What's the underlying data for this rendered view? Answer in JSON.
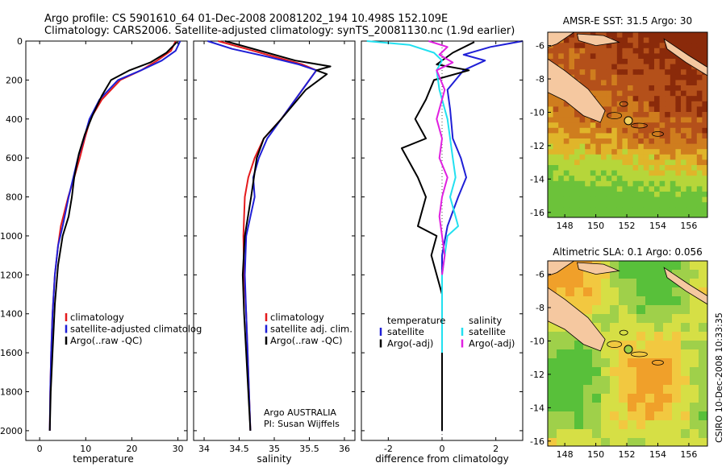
{
  "title_line1": "Argo profile: CS 5901610_64 01-Dec-2008 20081202_194 10.498S 152.109E",
  "title_line2": "Climatology: CARS2006. Satellite-adjusted climatology: synTS_20081130.nc (1.9d earlier)",
  "side_stamp": "CSIRO 10-Dec-2008 10:33:35",
  "colors": {
    "red": "#e41a1c",
    "blue": "#1f1fd6",
    "black": "#000000",
    "cyan": "#22e0f0",
    "magenta": "#e020e0"
  },
  "chart_data": [
    {
      "type": "line",
      "xlabel": "temperature",
      "ylabel": "",
      "xlim": [
        -3,
        32
      ],
      "ylim": [
        2050,
        0
      ],
      "xticks": [
        0,
        10,
        20,
        30
      ],
      "yticks": [
        0,
        200,
        400,
        600,
        800,
        1000,
        1200,
        1400,
        1600,
        1800,
        2000
      ],
      "legend_position": "lower-right",
      "legend": [
        "climatology",
        "satellite-adjusted climatolog",
        "Argo(..raw -QC)"
      ],
      "series": [
        {
          "name": "climatology",
          "color": "#e41a1c",
          "x": [
            29.5,
            28.5,
            25.5,
            22,
            17.5,
            13.5,
            11,
            9.8,
            8.7,
            7.5,
            6.2,
            4.6,
            4.0,
            3.3,
            2.8,
            2.5,
            2.3,
            2.2
          ],
          "y": [
            0,
            50,
            100,
            150,
            200,
            300,
            400,
            500,
            600,
            700,
            800,
            950,
            1050,
            1200,
            1400,
            1600,
            1800,
            2000
          ]
        },
        {
          "name": "satellite-adjusted climatolog",
          "color": "#1f1fd6",
          "x": [
            30.5,
            29.5,
            26.5,
            22,
            17,
            13,
            10.8,
            9.6,
            8.3,
            7.3,
            6.3,
            5.0,
            4.0,
            3.3,
            2.8,
            2.5,
            2.3,
            2.2
          ],
          "y": [
            0,
            50,
            100,
            150,
            200,
            300,
            400,
            500,
            600,
            700,
            800,
            950,
            1050,
            1200,
            1400,
            1600,
            1800,
            2000
          ]
        },
        {
          "name": "Argo(..raw -QC)",
          "color": "#000000",
          "x": [
            29.8,
            27.5,
            24,
            19.5,
            15.5,
            13.5,
            11.5,
            9.8,
            8.5,
            7.5,
            7.0,
            6.3,
            5.0,
            4.0,
            3.3,
            2.8,
            2.4,
            2.2
          ],
          "y": [
            5,
            60,
            110,
            150,
            200,
            280,
            380,
            480,
            580,
            700,
            800,
            900,
            1000,
            1150,
            1350,
            1600,
            1800,
            2000
          ]
        }
      ]
    },
    {
      "type": "line",
      "xlabel": "salinity",
      "ylabel": "",
      "xlim": [
        33.85,
        36.15
      ],
      "ylim": [
        2050,
        0
      ],
      "xticks": [
        34,
        34.5,
        35,
        35.5,
        36
      ],
      "legend_position": "lower-right",
      "legend": [
        "climatology",
        "satellite adj. clim.",
        "Argo(..raw -QC)"
      ],
      "annotation": [
        "Argo AUSTRALIA",
        "PI: Susan Wijffels"
      ],
      "series": [
        {
          "name": "climatology",
          "color": "#e41a1c",
          "x": [
            34.2,
            34.6,
            35.0,
            35.4,
            35.6,
            35.4,
            35.1,
            34.85,
            34.72,
            34.63,
            34.58,
            34.56,
            34.57,
            34.6,
            34.62,
            34.64,
            34.66
          ],
          "y": [
            0,
            40,
            80,
            120,
            150,
            250,
            400,
            500,
            600,
            700,
            800,
            1000,
            1200,
            1400,
            1600,
            1800,
            2000
          ]
        },
        {
          "name": "satellite adj. clim.",
          "color": "#1f1fd6",
          "x": [
            34.05,
            34.4,
            34.9,
            35.35,
            35.6,
            35.4,
            35.1,
            34.9,
            34.78,
            34.7,
            34.72,
            34.6,
            34.58,
            34.6,
            34.62,
            34.64,
            34.66
          ],
          "y": [
            0,
            40,
            80,
            120,
            150,
            250,
            400,
            500,
            600,
            700,
            800,
            1000,
            1200,
            1400,
            1600,
            1800,
            2000
          ]
        },
        {
          "name": "Argo(..raw -QC)",
          "color": "#000000",
          "x": [
            34.3,
            34.9,
            35.3,
            35.8,
            35.6,
            35.75,
            35.45,
            35.1,
            34.85,
            34.75,
            34.67,
            34.58,
            34.55,
            34.57,
            34.6,
            34.63,
            34.66
          ],
          "y": [
            0,
            60,
            100,
            130,
            150,
            170,
            250,
            400,
            500,
            600,
            800,
            1000,
            1200,
            1400,
            1600,
            1800,
            2000
          ]
        }
      ]
    },
    {
      "type": "line",
      "xlabel": "difference from climatology",
      "ylabel": "",
      "xlim": [
        -3,
        3
      ],
      "ylim": [
        2050,
        0
      ],
      "xticks": [
        -2,
        0,
        2
      ],
      "legend_position": "lower-right",
      "legend": [
        "temperature",
        "satellite",
        "Argo(-adj)",
        "salinity",
        "satellite",
        "Argo(-adj)"
      ],
      "series": [
        {
          "name": "satellite",
          "color": "#1f1fd6",
          "x": [
            3.0,
            1.8,
            0.8,
            1.6,
            0.8,
            0.2,
            0.3,
            0.4,
            0.7,
            0.9,
            0.6,
            0.2,
            0.0,
            0.0,
            0.0,
            0.0
          ],
          "y": [
            0,
            30,
            70,
            100,
            150,
            250,
            350,
            500,
            600,
            700,
            800,
            950,
            1100,
            1400,
            1700,
            2000
          ]
        },
        {
          "name": "Argo(-adj)",
          "color": "#000000",
          "x": [
            1.2,
            0.4,
            -0.2,
            1.0,
            -0.3,
            -0.6,
            -1.0,
            -0.6,
            -1.5,
            -0.9,
            -0.6,
            -0.9,
            -0.2,
            -0.4,
            0.0,
            0.0,
            0.0
          ],
          "y": [
            5,
            60,
            120,
            150,
            200,
            300,
            400,
            500,
            550,
            700,
            800,
            950,
            1000,
            1100,
            1300,
            1500,
            2000
          ]
        },
        {
          "name": "satellite",
          "color": "#22e0f0",
          "x": [
            -2.8,
            -1.2,
            -0.3,
            0.0,
            -0.2,
            -0.1,
            0.2,
            0.4,
            0.5,
            0.3,
            0.5,
            0.6,
            0.2,
            0.0,
            0.0
          ],
          "y": [
            0,
            20,
            60,
            100,
            150,
            250,
            400,
            600,
            700,
            800,
            900,
            950,
            1000,
            1200,
            1600
          ]
        },
        {
          "name": "Argo(-adj)",
          "color": "#e020e0",
          "x": [
            -0.5,
            0.2,
            -0.1,
            0.4,
            -0.2,
            0.1,
            -0.2,
            0.0,
            -0.1,
            0.2,
            0.0,
            -0.1,
            0.0,
            0.1,
            0.0
          ],
          "y": [
            0,
            30,
            70,
            110,
            150,
            250,
            400,
            500,
            600,
            700,
            800,
            900,
            1000,
            1100,
            1200
          ]
        }
      ]
    }
  ],
  "maps": [
    {
      "title": "AMSR-E SST: 31.5  Argo: 30",
      "xticks": [
        148,
        150,
        152,
        154,
        156
      ],
      "yticks": [
        -6,
        -8,
        -10,
        -12,
        -14,
        -16
      ],
      "xlim": [
        146.9,
        157.2
      ],
      "ylim": [
        -16.3,
        -5.2
      ],
      "argo_lon": 152.1,
      "argo_lat": -10.5
    },
    {
      "title": "Altimetric SLA: 0.1  Argo: 0.056",
      "xticks": [
        148,
        150,
        152,
        154,
        156
      ],
      "yticks": [
        -6,
        -8,
        -10,
        -12,
        -14,
        -16
      ],
      "xlim": [
        146.9,
        157.2
      ],
      "ylim": [
        -16.3,
        -5.2
      ],
      "argo_lon": 152.1,
      "argo_lat": -10.5
    }
  ]
}
